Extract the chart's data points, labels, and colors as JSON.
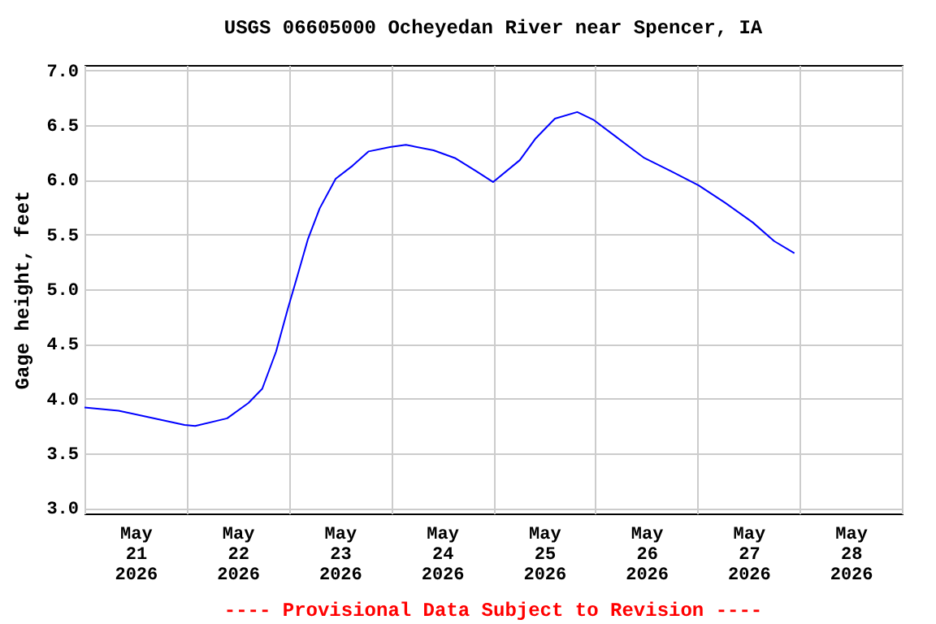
{
  "chart_data": {
    "type": "line",
    "title": "USGS 06605000 Ocheyedan River near Spencer, IA",
    "ylabel": "Gage height, feet",
    "annotations": [
      "---- Provisional Data Subject to Revision ----"
    ],
    "x": [
      "2026-05-21T00:00",
      "2026-05-21T08:00",
      "2026-05-21T23:30",
      "2026-05-22T02:00",
      "2026-05-22T09:30",
      "2026-05-22T14:30",
      "2026-05-22T17:45",
      "2026-05-22T21:00",
      "2026-05-22T23:45",
      "2026-05-23T02:00",
      "2026-05-23T04:30",
      "2026-05-23T07:15",
      "2026-05-23T11:00",
      "2026-05-23T15:00",
      "2026-05-23T18:45",
      "2026-05-23T23:45",
      "2026-05-24T03:30",
      "2026-05-24T10:00",
      "2026-05-24T15:00",
      "2026-05-24T20:00",
      "2026-05-25T00:00",
      "2026-05-25T06:15",
      "2026-05-25T10:00",
      "2026-05-25T14:30",
      "2026-05-25T19:45",
      "2026-05-25T23:30",
      "2026-05-26T05:00",
      "2026-05-26T11:30",
      "2026-05-26T17:45",
      "2026-05-27T00:15",
      "2026-05-27T06:30",
      "2026-05-27T13:00",
      "2026-05-27T18:00",
      "2026-05-27T22:45"
    ],
    "series": [
      {
        "color": "#0000ff",
        "values": [
          3.92,
          3.89,
          3.76,
          3.75,
          3.82,
          3.96,
          4.09,
          4.43,
          4.82,
          5.12,
          5.46,
          5.74,
          6.01,
          6.13,
          6.26,
          6.3,
          6.32,
          6.27,
          6.2,
          6.08,
          5.98,
          6.18,
          6.38,
          6.56,
          6.62,
          6.55,
          6.39,
          6.2,
          6.08,
          5.95,
          5.79,
          5.61,
          5.44,
          5.33
        ]
      }
    ],
    "xlim": [
      "2026-05-21T00:00",
      "2026-05-29T00:00"
    ],
    "xticks": [
      {
        "value": "2026-05-21T00:00",
        "label": null
      },
      {
        "value": "2026-05-21T12:00",
        "label": "May\n21\n2026"
      },
      {
        "value": "2026-05-22T00:00",
        "label": null
      },
      {
        "value": "2026-05-22T12:00",
        "label": "May\n22\n2026"
      },
      {
        "value": "2026-05-23T00:00",
        "label": null
      },
      {
        "value": "2026-05-23T12:00",
        "label": "May\n23\n2026"
      },
      {
        "value": "2026-05-24T00:00",
        "label": null
      },
      {
        "value": "2026-05-24T12:00",
        "label": "May\n24\n2026"
      },
      {
        "value": "2026-05-25T00:00",
        "label": null
      },
      {
        "value": "2026-05-25T12:00",
        "label": "May\n25\n2026"
      },
      {
        "value": "2026-05-26T00:00",
        "label": null
      },
      {
        "value": "2026-05-26T12:00",
        "label": "May\n26\n2026"
      },
      {
        "value": "2026-05-27T00:00",
        "label": null
      },
      {
        "value": "2026-05-27T12:00",
        "label": "May\n27\n2026"
      },
      {
        "value": "2026-05-28T00:00",
        "label": null
      },
      {
        "value": "2026-05-28T12:00",
        "label": "May\n28\n2026"
      },
      {
        "value": "2026-05-29T00:00",
        "label": null
      }
    ],
    "ylim": [
      2.95,
      7.05
    ],
    "yticks": [
      {
        "value": 3,
        "label": "3.0"
      },
      {
        "value": 3.5,
        "label": "3.5"
      },
      {
        "value": 4,
        "label": "4.0"
      },
      {
        "value": 4.5,
        "label": "4.5"
      },
      {
        "value": 5,
        "label": "5.0"
      },
      {
        "value": 5.5,
        "label": "5.5"
      },
      {
        "value": 6,
        "label": "6.0"
      },
      {
        "value": 6.5,
        "label": "6.5"
      },
      {
        "value": 7,
        "label": "7.0"
      }
    ],
    "grid": true
  }
}
